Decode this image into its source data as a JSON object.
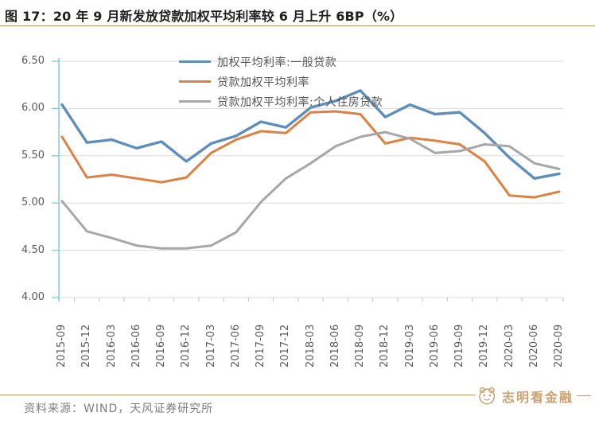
{
  "header": {
    "title": "图 17：20 年 9 月新发放贷款加权平均利率较 6 月上升 6BP（%）"
  },
  "footer": {
    "source": "资料来源：WIND，天风证券研究所"
  },
  "watermark": {
    "text": "志明看金融",
    "icon": "panda-logo-icon",
    "color": "#c9a273"
  },
  "colors": {
    "accent_rule": "#b8935c",
    "axis_line": "#7cc8d9",
    "gridline": "#dadada",
    "x_tick": "#c0c0c0",
    "axis_text": "#595959",
    "title_text": "#1f1f1f",
    "source_text": "#7d7d7d"
  },
  "chart_data": {
    "type": "line",
    "title": "20 年 9 月新发放贷款加权平均利率较 6 月上升 6BP（%）",
    "xlabel": "",
    "ylabel": "",
    "ylim": [
      4.0,
      6.5
    ],
    "ytick_step": 0.5,
    "y_ticks": [
      "6.50",
      "6.00",
      "5.50",
      "5.00",
      "4.50",
      "4.00"
    ],
    "grid": true,
    "legend_position": "top-center",
    "categories": [
      "2015-09",
      "2015-12",
      "2016-03",
      "2016-06",
      "2016-09",
      "2016-12",
      "2017-03",
      "2017-06",
      "2017-09",
      "2017-12",
      "2018-03",
      "2018-06",
      "2018-09",
      "2018-12",
      "2019-03",
      "2019-06",
      "2019-09",
      "2019-12",
      "2020-03",
      "2020-06",
      "2020-09"
    ],
    "series": [
      {
        "name": "加权平均利率:一般贷款",
        "color": "#5f8eb9",
        "values": [
          6.04,
          5.64,
          5.67,
          5.58,
          5.65,
          5.44,
          5.63,
          5.71,
          5.86,
          5.8,
          6.01,
          6.08,
          6.19,
          5.91,
          6.04,
          5.94,
          5.96,
          5.74,
          5.48,
          5.26,
          5.31
        ]
      },
      {
        "name": "贷款加权平均利率",
        "color": "#dd8142",
        "values": [
          5.7,
          5.27,
          5.3,
          5.26,
          5.22,
          5.27,
          5.53,
          5.67,
          5.76,
          5.74,
          5.96,
          5.97,
          5.94,
          5.63,
          5.69,
          5.66,
          5.62,
          5.44,
          5.08,
          5.06,
          5.12
        ]
      },
      {
        "name": "贷款加权平均利率:个人住房贷款",
        "color": "#a7a7a7",
        "values": [
          5.02,
          4.7,
          4.63,
          4.55,
          4.52,
          4.52,
          4.55,
          4.69,
          5.01,
          5.26,
          5.42,
          5.6,
          5.7,
          5.75,
          5.68,
          5.53,
          5.55,
          5.62,
          5.6,
          5.42,
          5.36
        ]
      }
    ]
  }
}
